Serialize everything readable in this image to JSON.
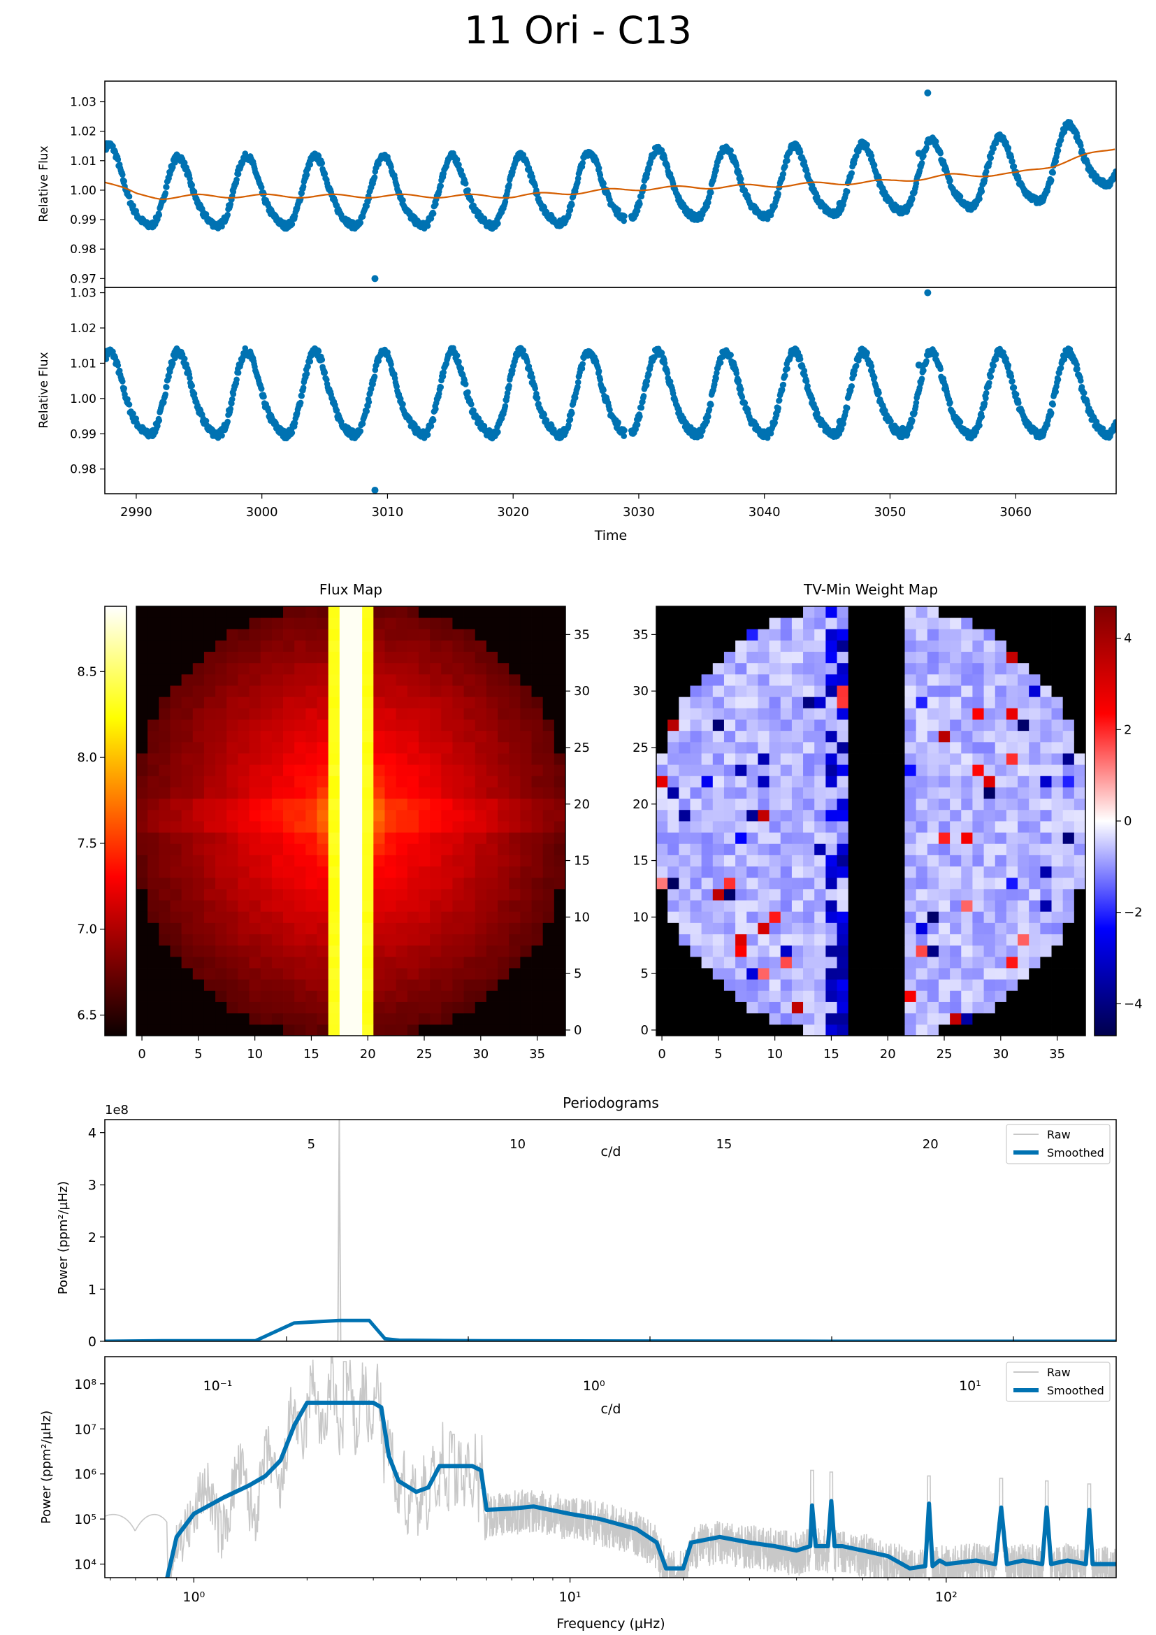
{
  "figure": {
    "title": "11 Ori - C13"
  },
  "chart_data": [
    {
      "id": "raw_lightcurve",
      "type": "scatter",
      "title": "",
      "xlabel": "",
      "ylabel": "Relative Flux",
      "xlim": [
        2987.5,
        3068
      ],
      "ylim": [
        0.967,
        1.037
      ],
      "yticks": [
        0.97,
        0.98,
        0.99,
        1.0,
        1.01,
        1.02,
        1.03
      ],
      "ytick_labels": [
        "0.97",
        "0.98",
        "0.99",
        "1.00",
        "1.01",
        "1.02",
        "1.03"
      ],
      "model": {
        "period_days": 5.45,
        "phase_ref": 2988.0,
        "amplitude": 0.0115
      },
      "outlier_points": [
        {
          "x": 3053.0,
          "y": 1.033
        },
        {
          "x": 3009.0,
          "y": 0.97
        },
        {
          "x": 3052.3,
          "y": 1.0125
        },
        {
          "x": 3046.0,
          "y": 0.9955
        },
        {
          "x": 3051.0,
          "y": 0.9935
        }
      ],
      "series": [
        {
          "name": "",
          "color": "#0072b2",
          "kind": "points"
        },
        {
          "name": "",
          "color": "#d55e00",
          "kind": "trend",
          "x": [
            2987.5,
            2990,
            2992,
            2995,
            3000,
            3010,
            3020,
            3030,
            3040,
            3050,
            3055,
            3060,
            3063,
            3065,
            3068
          ],
          "y": [
            1.003,
            0.9985,
            0.9975,
            0.998,
            0.998,
            0.998,
            0.998,
            1.0005,
            1.0015,
            1.003,
            1.005,
            1.0055,
            1.0085,
            1.011,
            1.0145
          ]
        }
      ]
    },
    {
      "id": "detrended_lightcurve",
      "type": "scatter",
      "title": "",
      "xlabel": "Time",
      "ylabel": "Relative Flux",
      "xlim": [
        2987.5,
        3068
      ],
      "ylim": [
        0.973,
        1.0315
      ],
      "xticks": [
        2990,
        3000,
        3010,
        3020,
        3030,
        3040,
        3050,
        3060
      ],
      "xtick_labels": [
        "2990",
        "3000",
        "3010",
        "3020",
        "3030",
        "3040",
        "3050",
        "3060"
      ],
      "yticks": [
        0.98,
        0.99,
        1.0,
        1.01,
        1.02,
        1.03
      ],
      "ytick_labels": [
        "0.98",
        "0.99",
        "1.00",
        "1.01",
        "1.02",
        "1.03"
      ],
      "outlier_points": [
        {
          "x": 3053.0,
          "y": 1.03
        },
        {
          "x": 3009.0,
          "y": 0.974
        },
        {
          "x": 3052.3,
          "y": 1.0095
        },
        {
          "x": 3046.0,
          "y": 0.9935
        },
        {
          "x": 3051.0,
          "y": 0.9915
        }
      ],
      "series": [
        {
          "name": "",
          "color": "#0072b2",
          "kind": "points"
        }
      ]
    },
    {
      "id": "flux_map",
      "type": "heatmap",
      "title": "Flux Map",
      "colormap": "hot",
      "colorbar": {
        "min": 6.38,
        "max": 8.88,
        "ticks": [
          6.5,
          7.0,
          7.5,
          8.0,
          8.5
        ],
        "tick_labels": [
          "6.5",
          "7.0",
          "7.5",
          "8.0",
          "8.5"
        ],
        "side": "left"
      },
      "grid_size": [
        38,
        38
      ],
      "xticks": [
        0,
        5,
        10,
        15,
        20,
        25,
        30,
        35
      ],
      "xtick_labels": [
        "0",
        "5",
        "10",
        "15",
        "20",
        "25",
        "30",
        "35"
      ],
      "yticks": [
        0,
        5,
        10,
        15,
        20,
        25,
        30,
        35
      ],
      "ytick_labels": [
        "0",
        "5",
        "10",
        "15",
        "20",
        "25",
        "30",
        "35"
      ],
      "bright_columns": [
        17,
        18,
        19,
        20
      ],
      "center": [
        19,
        19
      ]
    },
    {
      "id": "tv_min_weight_map",
      "type": "heatmap",
      "title": "TV-Min Weight Map",
      "colormap": "seismic",
      "colorbar": {
        "min": -4.7,
        "max": 4.7,
        "ticks": [
          -4,
          -2,
          0,
          2,
          4
        ],
        "tick_labels": [
          "−4",
          "−2",
          "0",
          "2",
          "4"
        ],
        "side": "right"
      },
      "grid_size": [
        38,
        38
      ],
      "xticks": [
        0,
        5,
        10,
        15,
        20,
        25,
        30,
        35
      ],
      "xtick_labels": [
        "0",
        "5",
        "10",
        "15",
        "20",
        "25",
        "30",
        "35"
      ],
      "yticks": [
        0,
        5,
        10,
        15,
        20,
        25,
        30,
        35
      ],
      "ytick_labels": [
        "0",
        "5",
        "10",
        "15",
        "20",
        "25",
        "30",
        "35"
      ],
      "masked_columns": [
        17,
        18,
        19,
        20,
        21
      ]
    },
    {
      "id": "periodogram_linear",
      "type": "line",
      "title": "Periodograms",
      "xlabel": "",
      "ylabel": "Power (ppm²/µHz)",
      "offset_text": "1e8",
      "yticks": [
        0,
        1,
        2,
        3,
        4
      ],
      "ytick_labels": [
        "0",
        "1",
        "2",
        "3",
        "4"
      ],
      "ylim": [
        0,
        4.25
      ],
      "xlim_uHz": [
        0.6,
        283
      ],
      "secondary_axis": {
        "label": "c/d",
        "ticks": [
          5,
          10,
          15,
          20
        ],
        "tick_labels": [
          "5",
          "10",
          "15",
          "20"
        ]
      },
      "legend": {
        "position": "upper right",
        "entries": [
          "Raw",
          "Smoothed"
        ]
      },
      "series": [
        {
          "name": "Raw",
          "color": "#c8c8c8",
          "spike_x_uHz": 2.5,
          "spike_height": 4.25
        },
        {
          "name": "Smoothed",
          "color": "#0072b2",
          "x": [
            0.6,
            0.85,
            1.0,
            1.5,
            1.9,
            2.5,
            3.0,
            3.3,
            3.6,
            4.5,
            6.0,
            50,
            283
          ],
          "y": [
            0.0,
            0.01,
            0.01,
            0.01,
            0.35,
            0.4,
            0.4,
            0.05,
            0.02,
            0.015,
            0.01,
            0.0,
            0.0
          ]
        }
      ]
    },
    {
      "id": "periodogram_log",
      "type": "line",
      "title": "",
      "xlabel": "Frequency (µHz)",
      "ylabel": "Power (ppm²/µHz)",
      "xscale": "log",
      "yscale": "log",
      "xlim": [
        0.58,
        283
      ],
      "ylim": [
        5000,
        400000000
      ],
      "xticks": [
        1,
        10,
        100
      ],
      "xtick_labels": [
        "10⁰",
        "10¹",
        "10²"
      ],
      "yticks": [
        10000,
        100000,
        1000000,
        10000000,
        100000000
      ],
      "ytick_labels": [
        "10⁴",
        "10⁵",
        "10⁶",
        "10⁷",
        "10⁸"
      ],
      "secondary_axis": {
        "label": "c/d",
        "ticks": [
          0.1,
          1,
          10
        ],
        "tick_labels": [
          "10⁻¹",
          "10⁰",
          "10¹"
        ]
      },
      "legend": {
        "position": "upper right",
        "entries": [
          "Raw",
          "Smoothed"
        ]
      },
      "series": [
        {
          "name": "Raw",
          "color": "#c8c8c8",
          "peaks": [
            {
              "x": 2.52,
              "y": 310000000
            },
            {
              "x": 4.9,
              "y": 7500000
            },
            {
              "x": 44,
              "y": 1200000
            },
            {
              "x": 49.5,
              "y": 1100000
            },
            {
              "x": 90,
              "y": 900000
            },
            {
              "x": 140,
              "y": 800000
            },
            {
              "x": 185,
              "y": 700000
            },
            {
              "x": 240,
              "y": 600000
            }
          ]
        },
        {
          "name": "Smoothed",
          "color": "#0072b2",
          "x": [
            0.85,
            0.9,
            1.0,
            1.2,
            1.4,
            1.55,
            1.7,
            1.85,
            2.0,
            3.0,
            3.15,
            3.3,
            3.5,
            3.9,
            4.2,
            4.5,
            5.5,
            5.8,
            6.0,
            7.0,
            8.0,
            10.0,
            12.0,
            15.0,
            17.0,
            18.0,
            20.0,
            21.0,
            25.0,
            30.0,
            35.0,
            40.0,
            43.5,
            44.0,
            45.0,
            48.5,
            49.5,
            50.5,
            53.0,
            60.0,
            70.0,
            80.0,
            88.0,
            90.0,
            92.0,
            96.0,
            100.0,
            120.0,
            135.0,
            140.0,
            145.0,
            160.0,
            180.0,
            185.0,
            190.0,
            210.0,
            235.0,
            240.0,
            245.0,
            283.0
          ],
          "y": [
            5000,
            40000,
            130000,
            300000,
            550000,
            900000,
            2000000,
            12000000,
            38000000,
            38000000,
            30000000,
            2500000,
            700000,
            400000,
            500000,
            1500000,
            1500000,
            1200000,
            160000,
            170000,
            190000,
            130000,
            100000,
            60000,
            30000,
            8000,
            8000,
            30000,
            40000,
            30000,
            25000,
            20000,
            25000,
            200000,
            25000,
            25000,
            250000,
            25000,
            25000,
            20000,
            15000,
            8000,
            9000,
            220000,
            9000,
            12000,
            10000,
            12000,
            10000,
            180000,
            10000,
            12000,
            10000,
            180000,
            10000,
            12000,
            10000,
            160000,
            10000,
            10000
          ]
        }
      ]
    }
  ]
}
